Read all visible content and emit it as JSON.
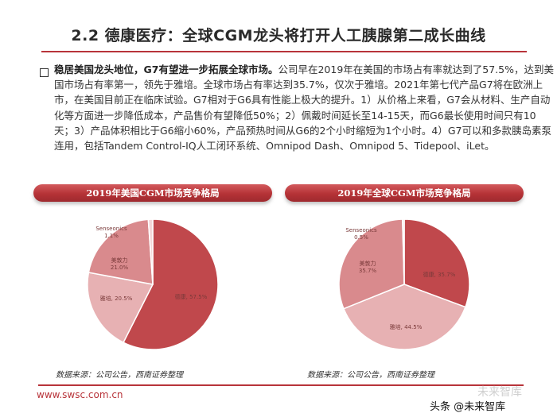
{
  "header": {
    "title": "2.2 德康医疗：全球CGM龙头将打开人工胰腺第二成长曲线"
  },
  "body": {
    "lead": "稳居美国龙头地位，G7有望进一步拓展全球市场。",
    "text": "公司早在2019年在美国的市场占有率就达到了57.5%，达到美国市场占有率第一，领先于雅培。全球市场占有率达到35.7%，仅次于雅培。2021年第七代产品G7将在欧洲上市，在美国目前正在临床试验。G7相对于G6具有性能上极大的提升。1）从价格上来看，G7会从材料、生产自动化等方面进一步降低成本，产品售价有望降低50%；2）佩戴时间延长至14-15天，而G6最长使用时间只有10天；3）产品体积相比于G6缩小60%，产品预热时间从G6的2个小时缩短为1个小时。4）G7可以和多款胰岛素泵连用，包括Tandem Control-IQ人工闭环系统、Omnipod Dash、Omnipod 5、Tidepool、iLet。"
  },
  "colors": {
    "accent": "#b8343a",
    "slice_dark": "#c0484c",
    "slice_mid": "#d98a8d",
    "slice_light": "#e7b1b3",
    "slice_pale": "#f3d6d7"
  },
  "chart_data": [
    {
      "type": "pie",
      "title": "2019年美国CGM市场竞争格局",
      "slices": [
        {
          "name": "德康",
          "value": 57.5,
          "label": "德康, 57.5%"
        },
        {
          "name": "雅培",
          "value": 20.5,
          "label": "雅培, 20.5%"
        },
        {
          "name": "美敦力",
          "value": 21.0,
          "label": "美敦力, 21.0%"
        },
        {
          "name": "Senseonics",
          "value": 1.1,
          "label": "Senseonics, 1.1%"
        }
      ]
    },
    {
      "type": "pie",
      "title": "2019年全球CGM市场竞争格局",
      "slices": [
        {
          "name": "德康",
          "value": 35.7,
          "label": "德康, 35.7%"
        },
        {
          "name": "雅培",
          "value": 44.5,
          "label": "雅培, 44.5%"
        },
        {
          "name": "美敦力",
          "value": 35.7,
          "label": "美敦力, 35.7%"
        },
        {
          "name": "Senseonics",
          "value": 0.5,
          "label": "Senseonics, 0.5%"
        }
      ]
    }
  ],
  "sources": {
    "left": "数据来源：公司公告，西南证券整理",
    "right": "数据来源：公司公告，西南证券整理"
  },
  "footer": {
    "url": "www.swsc.com.cn",
    "watermark_light": "未来智库",
    "watermark": "头条 @未来智库"
  }
}
